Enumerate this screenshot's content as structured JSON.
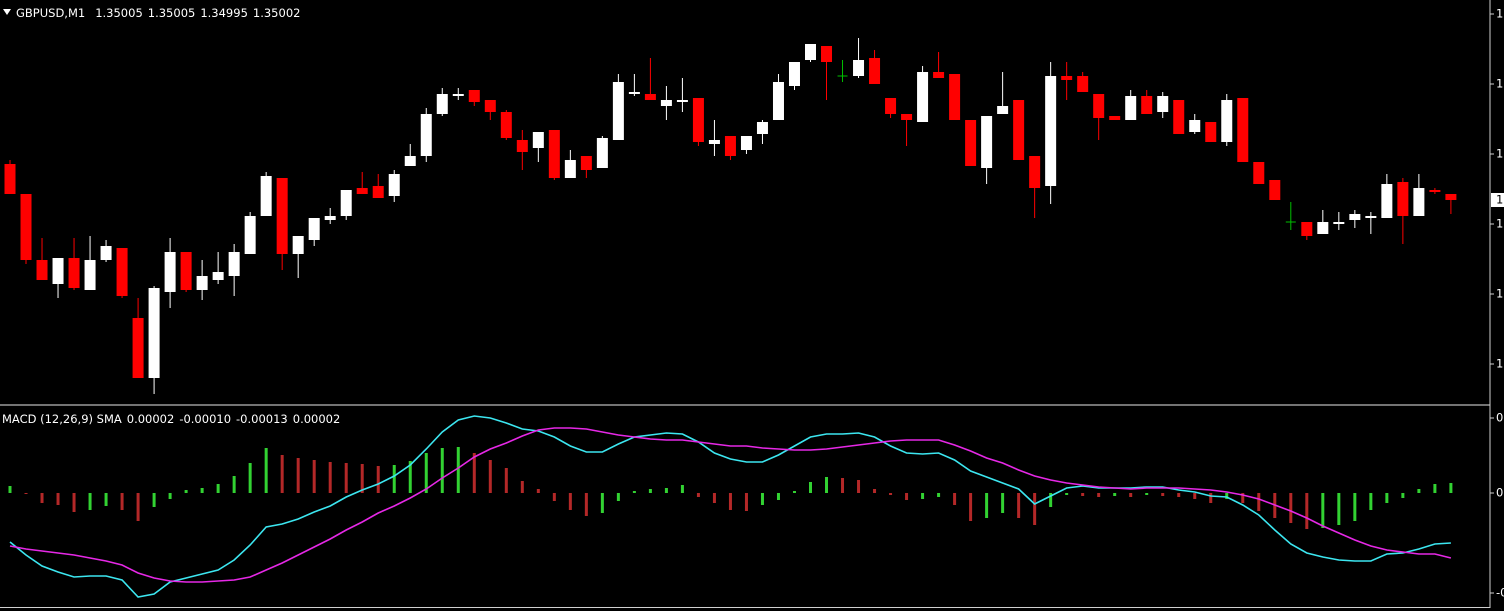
{
  "chart_data": [
    {
      "type": "candlestick",
      "title": "GBPUSD,M1",
      "colors": {
        "up": "#ffffff",
        "down": "#ff0000",
        "doji": "#00c000"
      },
      "open": [
        1.3502,
        1.35005,
        1.34972,
        1.3496,
        1.34973,
        1.34957,
        1.34972,
        1.34978,
        1.34943,
        1.34913,
        1.34956,
        1.34976,
        1.34957,
        1.34962,
        1.34964,
        1.34975,
        1.34994,
        1.35013,
        1.34975,
        1.34982,
        1.34992,
        1.34994,
        1.35008,
        1.35009,
        1.35004,
        1.35019,
        1.35024,
        1.35045,
        1.35054,
        1.35057,
        1.35052,
        1.35046,
        1.35032,
        1.35028,
        1.35037,
        1.35013,
        1.35024,
        1.35018,
        1.35032,
        1.35055,
        1.35055,
        1.35049,
        1.35051,
        1.35053,
        1.3503,
        1.35034,
        1.35027,
        1.35035,
        1.35042,
        1.35059,
        1.35072,
        1.35079,
        1.35064,
        1.35064,
        1.35073,
        1.35053,
        1.35045,
        1.35041,
        1.35066,
        1.35065,
        1.35042,
        1.35018,
        1.35045,
        1.35052,
        1.35024,
        1.35009,
        1.35064,
        1.35064,
        1.35055,
        1.35044,
        1.35042,
        1.35054,
        1.35046,
        1.35052,
        1.35036,
        1.35041,
        1.35031,
        1.35053,
        1.35021,
        1.35012,
        1.34991,
        1.34991,
        1.34985,
        1.3499,
        1.34992,
        1.34993,
        1.34993,
        1.35011,
        1.34994,
        1.35007,
        1.35005
      ],
      "high": [
        1.35022,
        1.35005,
        1.34983,
        1.34973,
        1.34983,
        1.34984,
        1.34982,
        1.34978,
        1.34953,
        1.34959,
        1.34983,
        1.34976,
        1.34972,
        1.34976,
        1.3498,
        1.34996,
        1.35016,
        1.35013,
        1.34984,
        1.34993,
        1.34998,
        1.35007,
        1.35016,
        1.35015,
        1.35017,
        1.3503,
        1.35048,
        1.35058,
        1.35058,
        1.35057,
        1.35052,
        1.35047,
        1.35037,
        1.35036,
        1.35037,
        1.35027,
        1.35024,
        1.35034,
        1.35065,
        1.35065,
        1.35073,
        1.35059,
        1.35063,
        1.35053,
        1.35042,
        1.35034,
        1.35034,
        1.35042,
        1.35065,
        1.35071,
        1.3508,
        1.35079,
        1.35072,
        1.35083,
        1.35077,
        1.35053,
        1.35045,
        1.35069,
        1.35076,
        1.35065,
        1.35042,
        1.35044,
        1.35066,
        1.35052,
        1.35024,
        1.35071,
        1.35071,
        1.35066,
        1.35055,
        1.35044,
        1.35057,
        1.35057,
        1.35056,
        1.35052,
        1.35045,
        1.35041,
        1.35055,
        1.35053,
        1.35021,
        1.35012,
        1.35001,
        1.34991,
        1.34997,
        1.34996,
        1.34997,
        1.34996,
        1.35015,
        1.35013,
        1.35015,
        1.35008,
        1.35005
      ],
      "low": [
        1.35005,
        1.3497,
        1.34962,
        1.34953,
        1.34957,
        1.34957,
        1.34971,
        1.34953,
        1.34913,
        1.34905,
        1.34948,
        1.34956,
        1.34952,
        1.3496,
        1.34954,
        1.34975,
        1.34994,
        1.34967,
        1.34963,
        1.34979,
        1.3499,
        1.34992,
        1.35005,
        1.35003,
        1.35001,
        1.35019,
        1.35021,
        1.35044,
        1.35052,
        1.35049,
        1.35042,
        1.35032,
        1.35017,
        1.35021,
        1.35012,
        1.35013,
        1.35013,
        1.35018,
        1.35032,
        1.35054,
        1.35052,
        1.35042,
        1.35046,
        1.35029,
        1.35024,
        1.35022,
        1.35025,
        1.3503,
        1.35042,
        1.35057,
        1.35071,
        1.35052,
        1.35061,
        1.35063,
        1.3506,
        1.35043,
        1.35029,
        1.35041,
        1.35063,
        1.35042,
        1.35019,
        1.3501,
        1.35045,
        1.35022,
        1.34993,
        1.35,
        1.35052,
        1.35056,
        1.35032,
        1.35042,
        1.35042,
        1.35045,
        1.35043,
        1.35035,
        1.35035,
        1.35031,
        1.35029,
        1.35021,
        1.3501,
        1.35002,
        1.34987,
        1.34982,
        1.34985,
        1.34987,
        1.34988,
        1.34985,
        1.34993,
        1.3498,
        1.34994,
        1.35005,
        1.34995
      ],
      "close": [
        1.35005,
        1.34972,
        1.34962,
        1.34973,
        1.34958,
        1.34972,
        1.34979,
        1.34954,
        1.34913,
        1.34958,
        1.34976,
        1.34957,
        1.34964,
        1.34966,
        1.34976,
        1.34994,
        1.35014,
        1.34975,
        1.34984,
        1.34993,
        1.34994,
        1.35007,
        1.35005,
        1.35003,
        1.35015,
        1.35024,
        1.35045,
        1.35055,
        1.35055,
        1.35051,
        1.35046,
        1.35033,
        1.35026,
        1.35036,
        1.35013,
        1.35022,
        1.35017,
        1.35033,
        1.35061,
        1.35056,
        1.35052,
        1.35052,
        1.35052,
        1.35031,
        1.35032,
        1.35024,
        1.35034,
        1.35041,
        1.35061,
        1.35071,
        1.3508,
        1.35071,
        1.35064,
        1.35072,
        1.3506,
        1.35045,
        1.35042,
        1.35066,
        1.35063,
        1.35042,
        1.35019,
        1.35044,
        1.35049,
        1.35022,
        1.35008,
        1.35064,
        1.35062,
        1.35056,
        1.35043,
        1.35042,
        1.35054,
        1.35045,
        1.35054,
        1.35035,
        1.35042,
        1.35031,
        1.35052,
        1.35021,
        1.3501,
        1.35002,
        1.34991,
        1.34984,
        1.34991,
        1.34991,
        1.34995,
        1.34994,
        1.3501,
        1.34994,
        1.35008,
        1.35006,
        1.35002
      ],
      "ylim": [
        1.349,
        1.35102
      ],
      "yticks": [
        {
          "value": 1.35095,
          "label": "1"
        },
        {
          "value": 1.3506,
          "label": "1"
        },
        {
          "value": 1.35025,
          "label": "1"
        },
        {
          "value": 1.3499,
          "label": "1"
        },
        {
          "value": 1.34955,
          "label": "1"
        },
        {
          "value": 1.3492,
          "label": "1"
        }
      ],
      "price_label": {
        "value": 1.35002,
        "label": "1"
      }
    },
    {
      "type": "macd",
      "title": "MACD (12,26,9) SMA",
      "status": [
        "0.00002",
        "-0.00010",
        "-0.00013",
        "0.00002"
      ],
      "histogram": {
        "up_color": "#32d232",
        "down_color": "#b42828",
        "values": [
          1.4e-05,
          0,
          -2e-05,
          -2.4e-05,
          -3.8e-05,
          -3.4e-05,
          -2.6e-05,
          -3.4e-05,
          -5.6e-05,
          -2.8e-05,
          -1.2e-05,
          6e-06,
          1e-05,
          1.8e-05,
          3.4e-05,
          6e-05,
          9e-05,
          7.6e-05,
          7e-05,
          6.6e-05,
          6.2e-05,
          6e-05,
          5.8e-05,
          5.4e-05,
          5.6e-05,
          6.4e-05,
          8e-05,
          9e-05,
          9.2e-05,
          8e-05,
          6.6e-05,
          5e-05,
          2.4e-05,
          8e-06,
          -1.6e-05,
          -3.4e-05,
          -4.6e-05,
          -4e-05,
          -1.6e-05,
          4e-06,
          8e-06,
          1e-05,
          1.6e-05,
          -8e-06,
          -2e-05,
          -3.4e-05,
          -3.6e-05,
          -2.4e-05,
          -1.4e-05,
          4e-06,
          2.2e-05,
          3.2e-05,
          3e-05,
          2.6e-05,
          8e-06,
          -4e-06,
          -1.4e-05,
          -1.2e-05,
          -8e-06,
          -2.4e-05,
          -5.6e-05,
          -5e-05,
          -4e-05,
          -5e-05,
          -6.4e-05,
          -2.8e-05,
          -4e-06,
          -6e-06,
          -8e-06,
          -6e-06,
          -8e-06,
          -4e-06,
          -6e-06,
          -8e-06,
          -1.2e-05,
          -2e-05,
          -1.2e-05,
          -2e-05,
          -3.6e-05,
          -5e-05,
          -6e-05,
          -7.2e-05,
          -7e-05,
          -6.4e-05,
          -5.6e-05,
          -3.4e-05,
          -2e-05,
          -1e-05,
          8e-06,
          1.8e-05,
          2e-05
        ]
      },
      "series": [
        {
          "color": "#3ce6f0",
          "values": [
            -9.8e-05,
            -0.000124,
            -0.000146,
            -0.000158,
            -0.000168,
            -0.000166,
            -0.000166,
            -0.000174,
            -0.000208,
            -0.000202,
            -0.000178,
            -0.00017,
            -0.000162,
            -0.000154,
            -0.000134,
            -0.000104,
            -6.8e-05,
            -6.2e-05,
            -5.2e-05,
            -3.8e-05,
            -2.6e-05,
            -8e-06,
            6e-06,
            1.8e-05,
            3.4e-05,
            5.6e-05,
            8.8e-05,
            0.000122,
            0.000146,
            0.000154,
            0.00015,
            0.00014,
            0.000128,
            0.000124,
            0.000112,
            9.4e-05,
            8.2e-05,
            8.2e-05,
            9.8e-05,
            0.000112,
            0.000116,
            0.00012,
            0.000118,
            0.000102,
            8e-05,
            6.8e-05,
            6.2e-05,
            6.2e-05,
            7.6e-05,
            9.4e-05,
            0.000112,
            0.000118,
            0.000118,
            0.00012,
            0.000112,
            9.4e-05,
            8e-05,
            7.8e-05,
            8e-05,
            6.6e-05,
            4.4e-05,
            3.2e-05,
            2e-05,
            8e-06,
            -2.2e-05,
            -6e-06,
            1e-05,
            1.4e-05,
            1e-05,
            1e-05,
            1e-05,
            1.2e-05,
            1.2e-05,
            6e-06,
            2e-06,
            -6e-06,
            -8e-06,
            -2.4e-05,
            -4.4e-05,
            -7.4e-05,
            -0.000102,
            -0.00012,
            -0.000128,
            -0.000134,
            -0.000136,
            -0.000136,
            -0.000122,
            -0.00012,
            -0.000112,
            -0.000102,
            -0.0001
          ]
        },
        {
          "color": "#e628e6",
          "values": [
            -0.000106,
            -0.000112,
            -0.000116,
            -0.00012,
            -0.000124,
            -0.00013,
            -0.000136,
            -0.000144,
            -0.00016,
            -0.00017,
            -0.000176,
            -0.000178,
            -0.000178,
            -0.000176,
            -0.000174,
            -0.000168,
            -0.000154,
            -0.00014,
            -0.000124,
            -0.000108,
            -9.2e-05,
            -7.4e-05,
            -5.8e-05,
            -4e-05,
            -2.6e-05,
            -1e-05,
            8e-06,
            3e-05,
            5e-05,
            7.2e-05,
            8.8e-05,
            0.0001,
            0.000114,
            0.000126,
            0.00013,
            0.00013,
            0.000128,
            0.000122,
            0.000116,
            0.000112,
            0.000108,
            0.000106,
            0.000106,
            0.000102,
            9.8e-05,
            9.4e-05,
            9.4e-05,
            9e-05,
            8.8e-05,
            8.6e-05,
            8.6e-05,
            8.8e-05,
            9.2e-05,
            9.6e-05,
            0.0001,
            0.000104,
            0.000106,
            0.000106,
            0.000106,
            9.6e-05,
            8.4e-05,
            7e-05,
            6e-05,
            4.6e-05,
            3.4e-05,
            2.6e-05,
            2e-05,
            1.6e-05,
            1.2e-05,
            1e-05,
            8e-06,
            1e-05,
            1e-05,
            1e-05,
            8e-06,
            6e-06,
            2e-06,
            -4e-06,
            -1.2e-05,
            -2.4e-05,
            -3.6e-05,
            -5e-05,
            -6.6e-05,
            -8e-05,
            -9.4e-05,
            -0.000106,
            -0.000114,
            -0.000118,
            -0.000122,
            -0.000122,
            -0.00013
          ]
        }
      ],
      "ylim": [
        -0.000228,
        0.000172
      ],
      "yticks": [
        {
          "value": 0.00015,
          "label": "0"
        },
        {
          "value": 0,
          "label": "0"
        },
        {
          "value": -0.0002,
          "label": "-0"
        }
      ]
    }
  ]
}
